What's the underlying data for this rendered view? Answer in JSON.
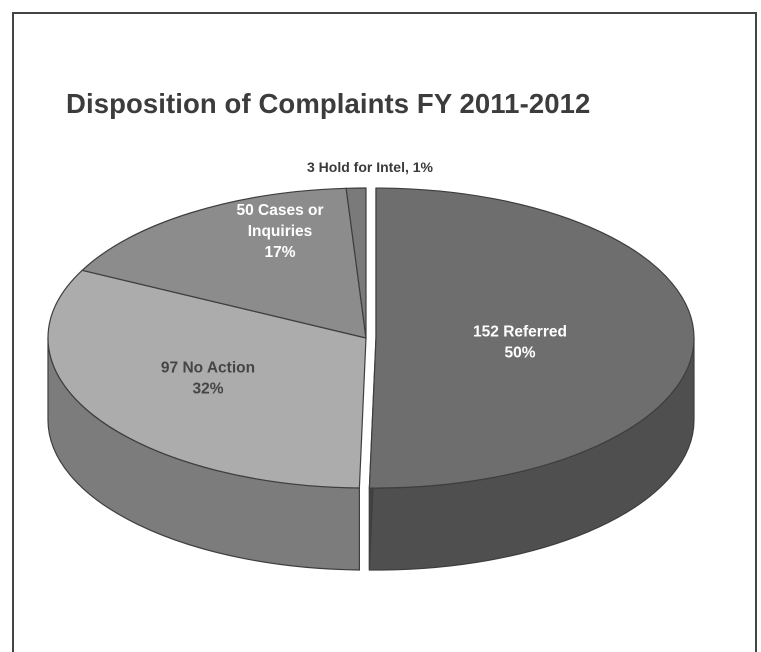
{
  "chart_data": {
    "type": "pie",
    "title": "Disposition of Complaints FY 2011-2012",
    "slices": [
      {
        "label_lines": [
          "152 Referred",
          "50%"
        ],
        "value": 152,
        "percent": 50,
        "color": "#6e6e6e",
        "text_color": "#ffffff"
      },
      {
        "label_lines": [
          "97 No Action",
          "32%"
        ],
        "value": 97,
        "percent": 32,
        "color": "#acacac",
        "text_color": "#454545"
      },
      {
        "label_lines": [
          "50 Cases or",
          "Inquiries",
          "17%"
        ],
        "value": 50,
        "percent": 17,
        "color": "#8c8c8c",
        "text_color": "#ffffff"
      },
      {
        "label_lines": [
          "3  Hold for Intel, 1%"
        ],
        "value": 3,
        "percent": 1,
        "color": "#7a7a7a",
        "text_color": "#3a3a3a"
      }
    ]
  }
}
